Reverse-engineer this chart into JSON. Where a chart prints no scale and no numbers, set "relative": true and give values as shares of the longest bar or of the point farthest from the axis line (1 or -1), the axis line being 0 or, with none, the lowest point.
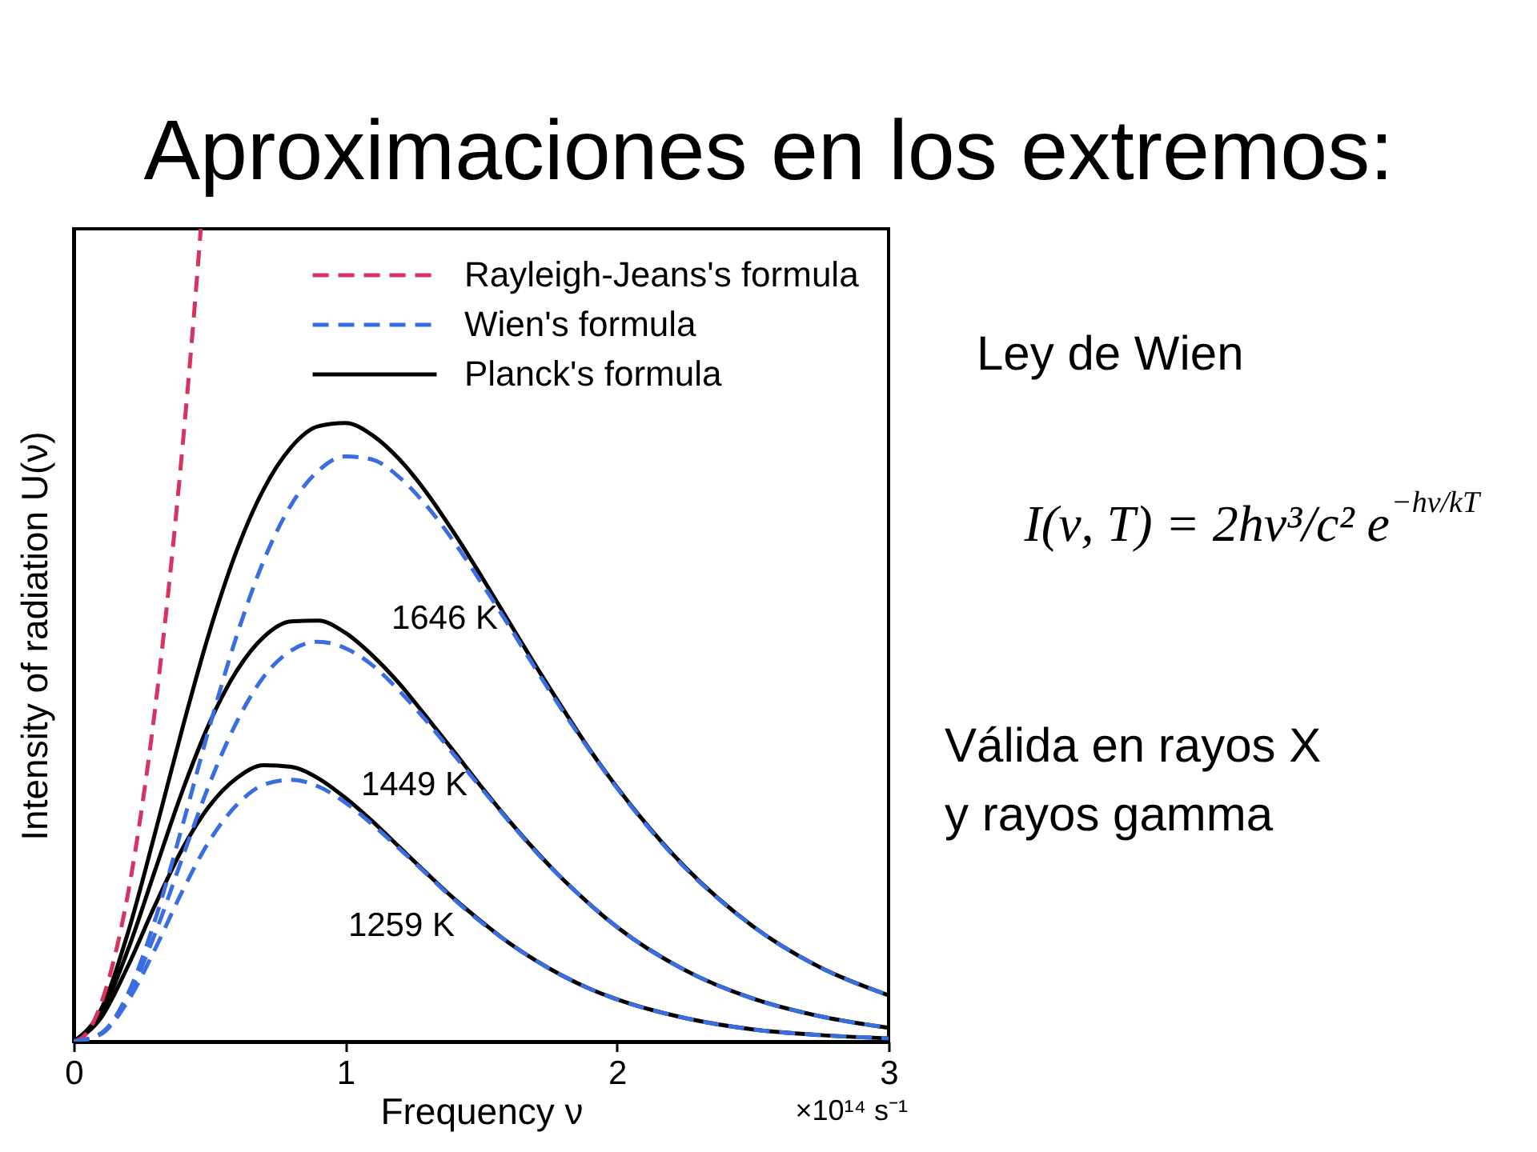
{
  "chart_data": {
    "type": "line",
    "title": "Aproximaciones en los extremos:",
    "xlabel": "Frequency ν",
    "ylabel": "Intensity of radiation U(ν)",
    "relative": true,
    "xlim": [
      0,
      3
    ],
    "xticks": [
      0,
      1,
      2,
      3
    ],
    "grid": false,
    "legend": "top right",
    "x": [
      0,
      0.1,
      0.2,
      0.3,
      0.4,
      0.5,
      0.6,
      0.7,
      0.8,
      0.9,
      1,
      1.1,
      1.2,
      1.3,
      1.4,
      1.5,
      1.6,
      1.7,
      1.8,
      1.9,
      2,
      2.25,
      2.5,
      2.75,
      3
    ],
    "series": [
      {
        "name": "Rayleigh-Jeans's formula",
        "color": "#d8325f",
        "line_style": "dashed",
        "x": [
          0,
          0.05,
          0.1,
          0.15,
          0.2,
          0.25,
          0.3,
          0.35,
          0.4,
          0.45,
          0.468
        ],
        "values": [
          0,
          0.011,
          0.046,
          0.103,
          0.182,
          0.285,
          0.41,
          0.558,
          0.729,
          0.923,
          1
        ]
      },
      {
        "name": "Wien's formula",
        "color": "#3a6ee0",
        "line_style": "dashed",
        "values": [
          0,
          0.01,
          0.059,
          0.15,
          0.265,
          0.387,
          0.499,
          0.592,
          0.66,
          0.702,
          0.72,
          0.716,
          0.694,
          0.659,
          0.615,
          0.565,
          0.513,
          0.459,
          0.407,
          0.358,
          0.312,
          0.214,
          0.142,
          0.091,
          0.057
        ]
      },
      {
        "color": "#3a6ee0",
        "line_style": "dashed",
        "values": [
          0,
          0.01,
          0.055,
          0.133,
          0.226,
          0.317,
          0.393,
          0.449,
          0.481,
          0.492,
          0.484,
          0.463,
          0.431,
          0.394,
          0.353,
          0.312,
          0.272,
          0.234,
          0.2,
          0.169,
          0.141,
          0.088,
          0.053,
          0.031,
          0.017
        ]
      },
      {
        "color": "#3a6ee0",
        "line_style": "dashed",
        "values": [
          0,
          0.009,
          0.05,
          0.114,
          0.185,
          0.247,
          0.291,
          0.316,
          0.322,
          0.314,
          0.294,
          0.267,
          0.237,
          0.206,
          0.175,
          0.147,
          0.122,
          0.1,
          0.081,
          0.065,
          0.052,
          0.029,
          0.015,
          0.008,
          0.004
        ]
      },
      {
        "name": "Planck's formula",
        "color": "#000000",
        "line_style": "solid",
        "values": [
          0,
          0.039,
          0.134,
          0.257,
          0.385,
          0.504,
          0.604,
          0.68,
          0.731,
          0.757,
          0.761,
          0.746,
          0.716,
          0.675,
          0.626,
          0.573,
          0.518,
          0.463,
          0.41,
          0.359,
          0.313,
          0.215,
          0.142,
          0.091,
          0.057
        ]
      },
      {
        "color": "#000000",
        "line_style": "solid",
        "values": [
          0,
          0.034,
          0.113,
          0.211,
          0.308,
          0.392,
          0.456,
          0.498,
          0.517,
          0.518,
          0.503,
          0.475,
          0.44,
          0.399,
          0.357,
          0.314,
          0.273,
          0.235,
          0.2,
          0.169,
          0.141,
          0.088,
          0.053,
          0.031,
          0.017
        ]
      },
      {
        "color": "#000000",
        "line_style": "solid",
        "values": [
          0,
          0.029,
          0.093,
          0.168,
          0.237,
          0.29,
          0.324,
          0.34,
          0.338,
          0.324,
          0.3,
          0.271,
          0.239,
          0.207,
          0.176,
          0.148,
          0.122,
          0.1,
          0.081,
          0.065,
          0.052,
          0.029,
          0.015,
          0.008,
          0.004
        ]
      }
    ],
    "annotations": [
      "×10¹⁴ s⁻¹",
      "Ley de Wien",
      "I(ν, T) = 2hν³/c² e$^{−hν/kT}$",
      "Válida en rayos X",
      "y rayos gamma",
      "1646 K",
      "1449 K",
      "1259 K"
    ]
  }
}
